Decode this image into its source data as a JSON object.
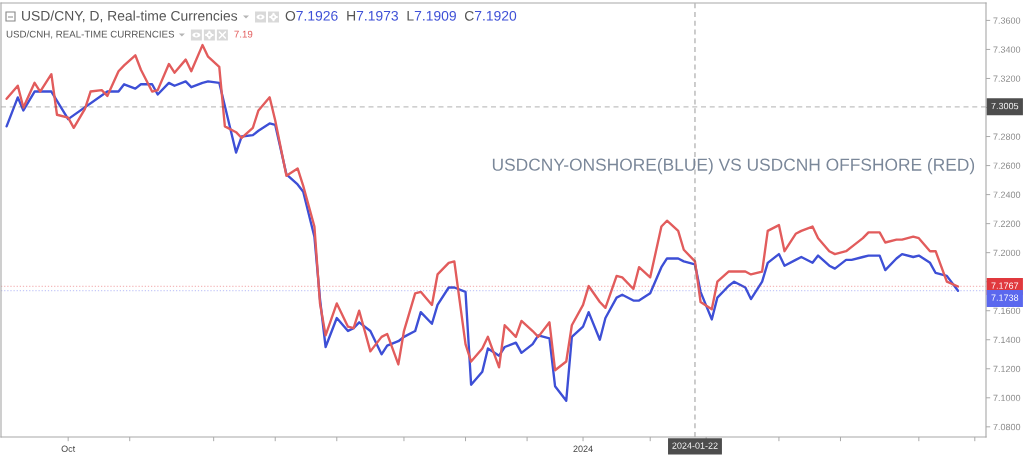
{
  "chart_data": {
    "type": "line",
    "title": "USD/CNY, D, Real-time Currencies",
    "subtitle": "USD/CNH, REAL-TIME CURRENCIES",
    "series": [
      {
        "color": "#3d4fd6",
        "x": [
          "2023-09-21",
          "2023-09-23",
          "2023-09-24",
          "2023-09-26",
          "2023-09-27",
          "2023-09-29",
          "2023-10-02",
          "2023-10-09",
          "2023-10-11",
          "2023-10-12",
          "2023-10-14",
          "2023-10-15",
          "2023-10-17",
          "2023-10-18",
          "2023-10-20",
          "2023-10-21",
          "2023-10-23",
          "2023-10-24",
          "2023-10-26",
          "2023-10-27",
          "2023-10-29",
          "2023-10-30",
          "2023-11-01",
          "2023-11-02",
          "2023-11-04",
          "2023-11-05",
          "2023-11-07",
          "2023-11-08",
          "2023-11-10",
          "2023-11-12",
          "2023-11-13",
          "2023-11-15",
          "2023-11-16",
          "2023-11-17",
          "2023-11-19",
          "2023-11-21",
          "2023-11-22",
          "2023-11-23",
          "2023-11-25",
          "2023-11-27",
          "2023-11-28",
          "2023-11-30",
          "2023-12-01",
          "2023-12-03",
          "2023-12-04",
          "2023-12-06",
          "2023-12-07",
          "2023-12-09",
          "2023-12-10",
          "2023-12-12",
          "2023-12-13",
          "2023-12-15",
          "2023-12-16",
          "2023-12-18",
          "2023-12-19",
          "2023-12-21",
          "2023-12-22",
          "2023-12-24",
          "2023-12-25",
          "2023-12-27",
          "2023-12-28",
          "2023-12-30",
          "2023-12-31",
          "2024-01-02",
          "2024-01-03",
          "2024-01-05",
          "2024-01-06",
          "2024-01-08",
          "2024-01-09",
          "2024-01-11",
          "2024-01-12",
          "2024-01-14",
          "2024-01-16",
          "2024-01-17",
          "2024-01-19",
          "2024-01-20",
          "2024-01-22",
          "2024-01-23",
          "2024-01-25",
          "2024-01-26",
          "2024-01-28",
          "2024-01-29",
          "2024-01-31",
          "2024-02-01",
          "2024-02-03",
          "2024-02-04",
          "2024-02-06",
          "2024-02-07",
          "2024-02-09",
          "2024-02-10",
          "2024-02-12",
          "2024-02-13",
          "2024-02-15",
          "2024-02-16",
          "2024-02-18",
          "2024-02-19",
          "2024-02-21",
          "2024-02-22",
          "2024-02-24",
          "2024-02-25",
          "2024-02-27",
          "2024-02-28",
          "2024-03-01",
          "2024-03-02",
          "2024-03-04",
          "2024-03-05",
          "2024-03-07",
          "2024-03-09"
        ],
        "values": [
          7.287,
          7.307,
          7.298,
          7.311,
          7.311,
          7.311,
          7.292,
          7.311,
          7.311,
          7.316,
          7.313,
          7.316,
          7.316,
          7.309,
          7.317,
          7.315,
          7.318,
          7.314,
          7.317,
          7.318,
          7.317,
          7.301,
          7.269,
          7.28,
          7.281,
          7.284,
          7.289,
          7.288,
          7.254,
          7.247,
          7.242,
          7.211,
          7.168,
          7.135,
          7.155,
          7.146,
          7.148,
          7.152,
          7.146,
          7.13,
          7.136,
          7.139,
          7.142,
          7.146,
          7.159,
          7.151,
          7.164,
          7.176,
          7.176,
          7.173,
          7.109,
          7.118,
          7.134,
          7.129,
          7.135,
          7.138,
          7.131,
          7.137,
          7.143,
          7.141,
          7.108,
          7.098,
          7.142,
          7.149,
          7.159,
          7.14,
          7.155,
          7.169,
          7.171,
          7.167,
          7.167,
          7.172,
          7.19,
          7.196,
          7.196,
          7.194,
          7.192,
          7.173,
          7.154,
          7.169,
          7.177,
          7.18,
          7.176,
          7.168,
          7.18,
          7.193,
          7.199,
          7.191,
          7.195,
          7.197,
          7.193,
          7.198,
          7.191,
          7.189,
          7.195,
          7.195,
          7.197,
          7.198,
          7.198,
          7.188,
          7.196,
          7.199,
          7.197,
          7.198,
          7.193,
          7.186,
          7.184,
          7.1738
        ]
      },
      {
        "color": "#e25c5c",
        "x": [
          "2023-09-21",
          "2023-09-23",
          "2023-09-24",
          "2023-09-26",
          "2023-09-27",
          "2023-09-29",
          "2023-09-30",
          "2023-10-02",
          "2023-10-03",
          "2023-10-05",
          "2023-10-06",
          "2023-10-08",
          "2023-10-09",
          "2023-10-11",
          "2023-10-12",
          "2023-10-14",
          "2023-10-15",
          "2023-10-17",
          "2023-10-18",
          "2023-10-20",
          "2023-10-21",
          "2023-10-23",
          "2023-10-24",
          "2023-10-26",
          "2023-10-27",
          "2023-10-29",
          "2023-10-30",
          "2023-11-01",
          "2023-11-02",
          "2023-11-04",
          "2023-11-05",
          "2023-11-07",
          "2023-11-08",
          "2023-11-10",
          "2023-11-12",
          "2023-11-13",
          "2023-11-15",
          "2023-11-16",
          "2023-11-17",
          "2023-11-19",
          "2023-11-21",
          "2023-11-22",
          "2023-11-23",
          "2023-11-25",
          "2023-11-27",
          "2023-11-28",
          "2023-11-30",
          "2023-12-01",
          "2023-12-03",
          "2023-12-04",
          "2023-12-06",
          "2023-12-07",
          "2023-12-09",
          "2023-12-10",
          "2023-12-12",
          "2023-12-13",
          "2023-12-15",
          "2023-12-16",
          "2023-12-18",
          "2023-12-19",
          "2023-12-21",
          "2023-12-22",
          "2023-12-24",
          "2023-12-25",
          "2023-12-27",
          "2023-12-28",
          "2023-12-30",
          "2023-12-31",
          "2024-01-02",
          "2024-01-03",
          "2024-01-05",
          "2024-01-06",
          "2024-01-08",
          "2024-01-09",
          "2024-01-11",
          "2024-01-12",
          "2024-01-14",
          "2024-01-16",
          "2024-01-17",
          "2024-01-19",
          "2024-01-20",
          "2024-01-22",
          "2024-01-23",
          "2024-01-25",
          "2024-01-26",
          "2024-01-28",
          "2024-01-29",
          "2024-01-31",
          "2024-02-01",
          "2024-02-03",
          "2024-02-04",
          "2024-02-06",
          "2024-02-07",
          "2024-02-09",
          "2024-02-10",
          "2024-02-12",
          "2024-02-13",
          "2024-02-15",
          "2024-02-16",
          "2024-02-18",
          "2024-02-19",
          "2024-02-21",
          "2024-02-22",
          "2024-02-24",
          "2024-02-25",
          "2024-02-27",
          "2024-02-28",
          "2024-03-01",
          "2024-03-02",
          "2024-03-04",
          "2024-03-05",
          "2024-03-07",
          "2024-03-09"
        ],
        "values": [
          7.306,
          7.315,
          7.3,
          7.317,
          7.311,
          7.323,
          7.295,
          7.293,
          7.286,
          7.299,
          7.311,
          7.312,
          7.308,
          7.325,
          7.329,
          7.336,
          7.326,
          7.311,
          7.312,
          7.33,
          7.324,
          7.333,
          7.325,
          7.343,
          7.335,
          7.328,
          7.287,
          7.283,
          7.279,
          7.286,
          7.298,
          7.307,
          7.291,
          7.253,
          7.258,
          7.246,
          7.218,
          7.165,
          7.143,
          7.165,
          7.149,
          7.148,
          7.16,
          7.132,
          7.142,
          7.144,
          7.123,
          7.146,
          7.172,
          7.173,
          7.164,
          7.185,
          7.193,
          7.194,
          7.137,
          7.125,
          7.134,
          7.142,
          7.121,
          7.15,
          7.142,
          7.153,
          7.146,
          7.142,
          7.152,
          7.119,
          7.125,
          7.15,
          7.164,
          7.177,
          7.166,
          7.162,
          7.184,
          7.183,
          7.175,
          7.19,
          7.183,
          7.218,
          7.222,
          7.215,
          7.202,
          7.194,
          7.166,
          7.161,
          7.18,
          7.187,
          7.187,
          7.187,
          7.185,
          7.187,
          7.215,
          7.219,
          7.201,
          7.213,
          7.215,
          7.218,
          7.21,
          7.201,
          7.199,
          7.201,
          7.204,
          7.21,
          7.214,
          7.214,
          7.207,
          7.209,
          7.209,
          7.211,
          7.21,
          7.201,
          7.201,
          7.18,
          7.1767
        ]
      }
    ],
    "xlim": [
      "2023-09-20",
      "2024-03-14"
    ],
    "xticks": [
      {
        "value": "2023-10-02",
        "label": "Oct"
      },
      {
        "value": "2023-10-13",
        "label": null
      },
      {
        "value": "2023-10-28",
        "label": null
      },
      {
        "value": "2023-11-08",
        "label": null
      },
      {
        "value": "2023-11-19",
        "label": null
      },
      {
        "value": "2023-12-01",
        "label": null
      },
      {
        "value": "2023-12-12",
        "label": null
      },
      {
        "value": "2023-12-23",
        "label": null
      },
      {
        "value": "2024-01-02",
        "label": "2024"
      },
      {
        "value": "2024-01-14",
        "label": null
      },
      {
        "value": "2024-01-24",
        "label": null
      },
      {
        "value": "2024-02-06",
        "label": null
      },
      {
        "value": "2024-02-17",
        "label": null
      },
      {
        "value": "2024-03-02",
        "label": null
      },
      {
        "value": "2024-03-12",
        "label": null
      }
    ],
    "ylim": [
      7.073,
      7.372
    ],
    "yticks": [
      {
        "value": 7.08,
        "label": "7.0800"
      },
      {
        "value": 7.1,
        "label": "7.1000"
      },
      {
        "value": 7.12,
        "label": "7.1200"
      },
      {
        "value": 7.14,
        "label": "7.1400"
      },
      {
        "value": 7.16,
        "label": "7.1600"
      },
      {
        "value": 7.18,
        "label": null
      },
      {
        "value": 7.2,
        "label": "7.2000"
      },
      {
        "value": 7.22,
        "label": "7.2200"
      },
      {
        "value": 7.24,
        "label": "7.2400"
      },
      {
        "value": 7.26,
        "label": "7.2600"
      },
      {
        "value": 7.28,
        "label": "7.2800"
      },
      {
        "value": 7.3,
        "label": null
      },
      {
        "value": 7.32,
        "label": "7.3200"
      },
      {
        "value": 7.34,
        "label": "7.3400"
      },
      {
        "value": 7.36,
        "label": "7.3600"
      }
    ],
    "ref_lines": [
      {
        "axis": "y",
        "value": 7.3005,
        "label": "7.3005",
        "color": "#4d4d4d",
        "line_style": "dashed"
      },
      {
        "axis": "x",
        "value": "2024-01-22",
        "label": "2024-01-22",
        "color": "#4d4d4d",
        "line_style": "dashed"
      },
      {
        "axis": "y",
        "value": 7.1767,
        "label": "7.1767",
        "color": "#e0393e",
        "line_style": "dotted"
      },
      {
        "axis": "y",
        "value": 7.1738,
        "label": "7.1738",
        "color": "#5b68ee",
        "line_style": "dotted"
      }
    ],
    "annotations": [
      "USDCNY-ONSHORE(BLUE) VS USDCNH OFFSHORE (RED)",
      "O7.1926 H7.1973 L7.1909 C7.1920",
      "7.19"
    ]
  }
}
